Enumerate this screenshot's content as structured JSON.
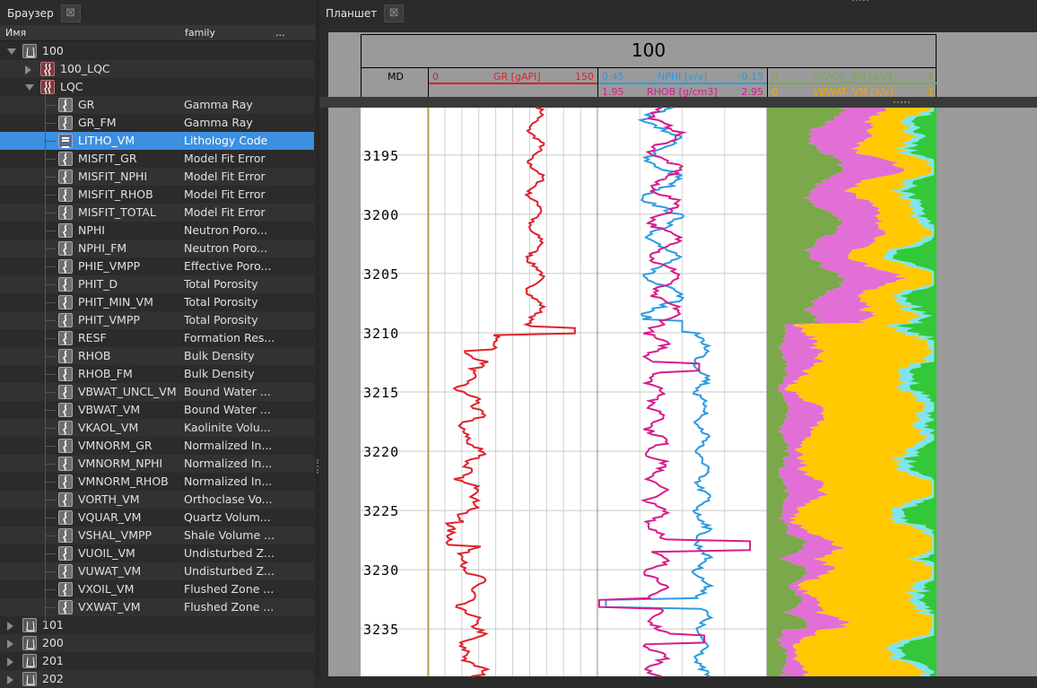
{
  "browser": {
    "tab_label": "Браузер",
    "columns": {
      "name": "Имя",
      "family": "family",
      "more": "..."
    }
  },
  "tablet": {
    "tab_label": "Планшет"
  },
  "tree": {
    "rows": [
      {
        "name": "100",
        "family": "",
        "type": "well",
        "level": 0,
        "expander": "down"
      },
      {
        "name": "100_LQC",
        "family": "",
        "type": "logset",
        "level": 1,
        "expander": "right"
      },
      {
        "name": "LQC",
        "family": "",
        "type": "logset",
        "level": 1,
        "expander": "down"
      },
      {
        "name": "GR",
        "family": "Gamma Ray",
        "type": "log",
        "level": 2
      },
      {
        "name": "GR_FM",
        "family": "Gamma Ray",
        "type": "log",
        "level": 2
      },
      {
        "name": "LITHO_VM",
        "family": "Lithology Code",
        "type": "litho",
        "level": 2,
        "selected": true
      },
      {
        "name": "MISFIT_GR",
        "family": "Model Fit Error",
        "type": "log",
        "level": 2
      },
      {
        "name": "MISFIT_NPHI",
        "family": "Model Fit Error",
        "type": "log",
        "level": 2
      },
      {
        "name": "MISFIT_RHOB",
        "family": "Model Fit Error",
        "type": "log",
        "level": 2
      },
      {
        "name": "MISFIT_TOTAL",
        "family": "Model Fit Error",
        "type": "log",
        "level": 2
      },
      {
        "name": "NPHI",
        "family": "Neutron Poro...",
        "type": "log",
        "level": 2
      },
      {
        "name": "NPHI_FM",
        "family": "Neutron Poro...",
        "type": "log",
        "level": 2
      },
      {
        "name": "PHIE_VMPP",
        "family": "Effective Poro...",
        "type": "log",
        "level": 2
      },
      {
        "name": "PHIT_D",
        "family": "Total Porosity",
        "type": "log",
        "level": 2
      },
      {
        "name": "PHIT_MIN_VM",
        "family": "Total Porosity",
        "type": "log",
        "level": 2
      },
      {
        "name": "PHIT_VMPP",
        "family": "Total Porosity",
        "type": "log",
        "level": 2
      },
      {
        "name": "RESF",
        "family": "Formation Res...",
        "type": "log",
        "level": 2
      },
      {
        "name": "RHOB",
        "family": "Bulk Density",
        "type": "log",
        "level": 2
      },
      {
        "name": "RHOB_FM",
        "family": "Bulk Density",
        "type": "log",
        "level": 2
      },
      {
        "name": "VBWAT_UNCL_VM",
        "family": "Bound Water ...",
        "type": "log",
        "level": 2
      },
      {
        "name": "VBWAT_VM",
        "family": "Bound Water ...",
        "type": "log",
        "level": 2
      },
      {
        "name": "VKAOL_VM",
        "family": "Kaolinite Volu...",
        "type": "log",
        "level": 2
      },
      {
        "name": "VMNORM_GR",
        "family": "Normalized In...",
        "type": "log",
        "level": 2
      },
      {
        "name": "VMNORM_NPHI",
        "family": "Normalized In...",
        "type": "log",
        "level": 2
      },
      {
        "name": "VMNORM_RHOB",
        "family": "Normalized In...",
        "type": "log",
        "level": 2
      },
      {
        "name": "VORTH_VM",
        "family": "Orthoclase Vo...",
        "type": "log",
        "level": 2
      },
      {
        "name": "VQUAR_VM",
        "family": "Quartz Volum...",
        "type": "log",
        "level": 2
      },
      {
        "name": "VSHAL_VMPP",
        "family": "Shale Volume ...",
        "type": "log",
        "level": 2
      },
      {
        "name": "VUOIL_VM",
        "family": "Undisturbed Z...",
        "type": "log",
        "level": 2
      },
      {
        "name": "VUWAT_VM",
        "family": "Undisturbed Z...",
        "type": "log",
        "level": 2
      },
      {
        "name": "VXOIL_VM",
        "family": "Flushed Zone ...",
        "type": "log",
        "level": 2
      },
      {
        "name": "VXWAT_VM",
        "family": "Flushed Zone ...",
        "type": "log",
        "level": 2
      },
      {
        "name": "101",
        "family": "",
        "type": "well",
        "level": 0,
        "expander": "right"
      },
      {
        "name": "200",
        "family": "",
        "type": "well",
        "level": 0,
        "expander": "right"
      },
      {
        "name": "201",
        "family": "",
        "type": "well",
        "level": 0,
        "expander": "right"
      },
      {
        "name": "202",
        "family": "",
        "type": "well",
        "level": 0,
        "expander": "right"
      }
    ]
  },
  "log_plot": {
    "well_title": "100",
    "depth_track": {
      "label": "MD"
    },
    "gr_track": {
      "curve": "GR [gAPI]",
      "min": "0",
      "max": "150",
      "color": "#e0202a"
    },
    "nphi_track": {
      "curve": "NPHI [v/v]",
      "min": "0.45",
      "max": "-0.15",
      "color": "#2a9be0"
    },
    "rhob_track": {
      "curve": "RHOB [g/cm3]",
      "min": "1.95",
      "max": "2.95",
      "color": "#d81b8a"
    },
    "vkaol_track": {
      "curve": "VKAOL_VM [v/v]",
      "min": "0",
      "max": "1",
      "color": "#7aaa4a"
    },
    "vbwat_track": {
      "curve": "VBWAT_VM [v/v]",
      "min": "0",
      "max": "1",
      "color": "#f0a800"
    },
    "depth_labels": [
      "3195",
      "3200",
      "3205",
      "3210",
      "3215",
      "3220",
      "3225",
      "3230",
      "3235"
    ],
    "depth_range": [
      3191,
      3239
    ],
    "colors": {
      "shale": "#7aa84a",
      "kaolinite": "#e26fd6",
      "sand": "#ffc800",
      "water": "#7ee4f0",
      "green": "#32c83a"
    }
  }
}
